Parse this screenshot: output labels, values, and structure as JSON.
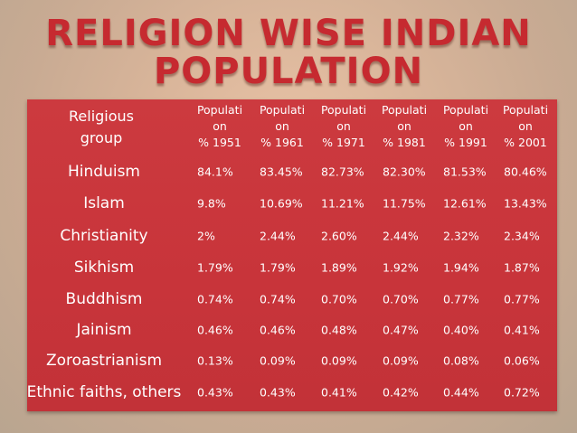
{
  "header": {
    "title_lines": [
      "RELIGION WISE INDIAN",
      "POPULATION"
    ]
  },
  "table": {
    "corner": "Religious group",
    "columns": [
      [
        "Populati",
        "on",
        "% 1951"
      ],
      [
        "Populati",
        "on",
        "% 1961"
      ],
      [
        "Populati",
        "on",
        "% 1971"
      ],
      [
        "Populati",
        "on",
        "% 1981"
      ],
      [
        "Populati",
        "on",
        "% 1991"
      ],
      [
        "Populati",
        "on",
        "% 2001"
      ]
    ],
    "rows": [
      [
        "Hinduism",
        "84.1%",
        "83.45%",
        "82.73%",
        "82.30%",
        "81.53%",
        "80.46%"
      ],
      [
        "Islam",
        "9.8%",
        "10.69%",
        "11.21%",
        "11.75%",
        "12.61%",
        "13.43%"
      ],
      [
        "Christianity",
        "2%",
        "2.44%",
        "2.60%",
        "2.44%",
        "2.32%",
        "2.34%"
      ],
      [
        "Sikhism",
        "1.79%",
        "1.79%",
        "1.89%",
        "1.92%",
        "1.94%",
        "1.87%"
      ],
      [
        "Buddhism",
        "0.74%",
        "0.74%",
        "0.70%",
        "0.70%",
        "0.77%",
        "0.77%"
      ],
      [
        "Jainism",
        "0.46%",
        "0.46%",
        "0.48%",
        "0.47%",
        "0.40%",
        "0.41%"
      ],
      [
        "Zoroastrianism",
        "0.13%",
        "0.09%",
        "0.09%",
        "0.09%",
        "0.08%",
        "0.06%"
      ],
      [
        "Ethnic faiths, others",
        "0.43%",
        "0.43%",
        "0.41%",
        "0.42%",
        "0.44%",
        "0.72%"
      ]
    ]
  }
}
